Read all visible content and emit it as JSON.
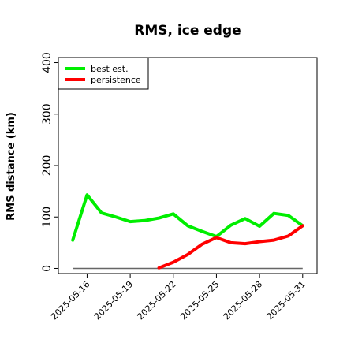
{
  "chart_data": {
    "type": "line",
    "title": "RMS, ice edge",
    "xlabel": "",
    "ylabel": "RMS distance (km)",
    "ylim": [
      -10,
      410
    ],
    "yticks": [
      0,
      100,
      200,
      300,
      400
    ],
    "xlim": [
      "2025-05-14",
      "2025-06-01"
    ],
    "xticks": [
      "2025-05-16",
      "2025-05-19",
      "2025-05-22",
      "2025-05-25",
      "2025-05-28",
      "2025-05-31"
    ],
    "legend_position": "top-left",
    "grid": false,
    "series": [
      {
        "name": "best est.",
        "color": "#00ee00",
        "x": [
          "2025-05-15",
          "2025-05-16",
          "2025-05-17",
          "2025-05-18",
          "2025-05-19",
          "2025-05-20",
          "2025-05-21",
          "2025-05-22",
          "2025-05-23",
          "2025-05-24",
          "2025-05-25",
          "2025-05-26",
          "2025-05-27",
          "2025-05-28",
          "2025-05-29",
          "2025-05-30",
          "2025-05-31"
        ],
        "values": [
          55,
          143,
          108,
          100,
          91,
          93,
          98,
          106,
          83,
          72,
          62,
          84,
          97,
          82,
          107,
          103,
          83
        ]
      },
      {
        "name": "persistence",
        "color": "#ff0000",
        "x": [
          "2025-05-21",
          "2025-05-22",
          "2025-05-23",
          "2025-05-24",
          "2025-05-25",
          "2025-05-26",
          "2025-05-27",
          "2025-05-28",
          "2025-05-29",
          "2025-05-30",
          "2025-05-31"
        ],
        "values": [
          1,
          12,
          27,
          47,
          60,
          50,
          48,
          52,
          55,
          63,
          83
        ]
      }
    ],
    "reference_line": {
      "color": "#666666",
      "value": 0,
      "x": [
        "2025-05-15",
        "2025-05-31"
      ]
    }
  }
}
